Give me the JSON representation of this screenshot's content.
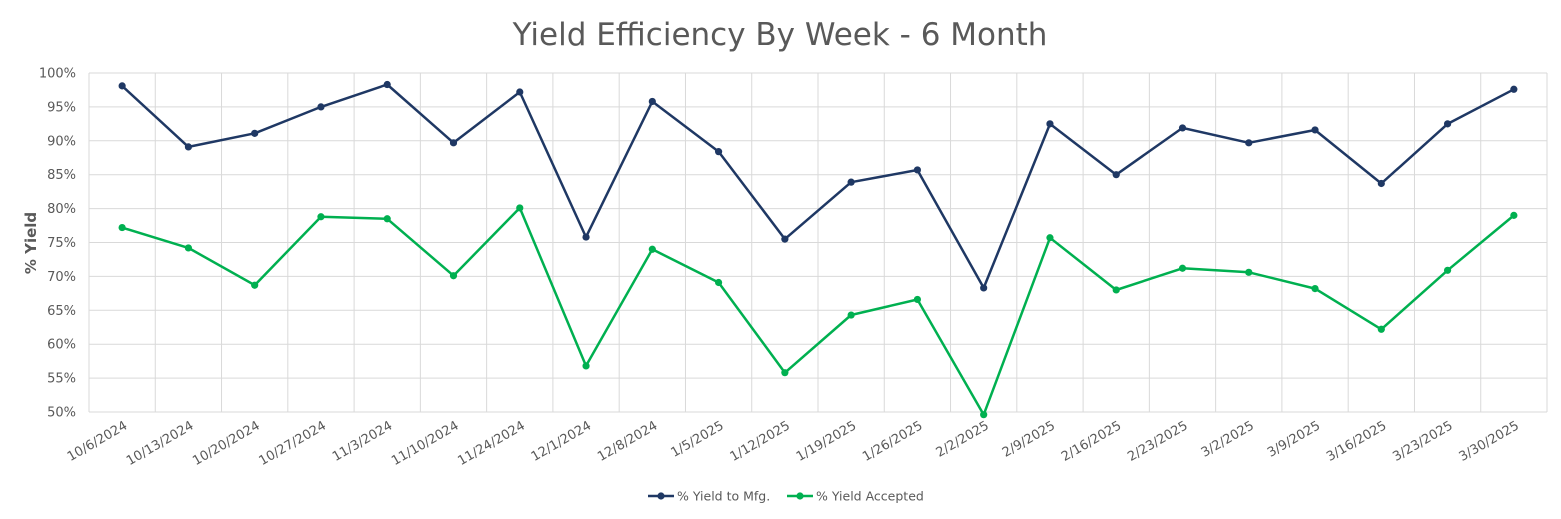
{
  "chart_data": {
    "type": "line",
    "title": "Yield Efficiency By Week - 6 Month",
    "ylabel": "% Yield",
    "xlabel": "",
    "ylim": [
      50,
      100
    ],
    "yticks": [
      50,
      55,
      60,
      65,
      70,
      75,
      80,
      85,
      90,
      95,
      100
    ],
    "ytick_labels": [
      "50%",
      "55%",
      "60%",
      "65%",
      "70%",
      "75%",
      "80%",
      "85%",
      "90%",
      "95%",
      "100%"
    ],
    "grid": true,
    "legend_position": "bottom",
    "categories": [
      "10/6/2024",
      "10/13/2024",
      "10/20/2024",
      "10/27/2024",
      "11/3/2024",
      "11/10/2024",
      "11/24/2024",
      "12/1/2024",
      "12/8/2024",
      "1/5/2025",
      "1/12/2025",
      "1/19/2025",
      "1/26/2025",
      "2/2/2025",
      "2/9/2025",
      "2/16/2025",
      "2/23/2025",
      "3/2/2025",
      "3/9/2025",
      "3/16/2025",
      "3/23/2025",
      "3/30/2025"
    ],
    "series": [
      {
        "name": "% Yield to Mfg.",
        "color": "#1f3864",
        "values": [
          98.1,
          89.1,
          91.1,
          95.0,
          98.3,
          89.7,
          97.2,
          75.8,
          95.8,
          88.4,
          75.5,
          83.9,
          85.7,
          68.3,
          92.5,
          85.0,
          91.9,
          89.7,
          91.6,
          83.7,
          92.5,
          97.6
        ]
      },
      {
        "name": "% Yield Accepted",
        "color": "#00b050",
        "values": [
          77.2,
          74.2,
          68.7,
          78.8,
          78.5,
          70.1,
          80.1,
          56.8,
          74.0,
          69.1,
          55.8,
          64.3,
          66.6,
          49.6,
          75.7,
          68.0,
          71.2,
          70.6,
          68.2,
          62.2,
          70.9,
          79.0
        ]
      }
    ]
  }
}
